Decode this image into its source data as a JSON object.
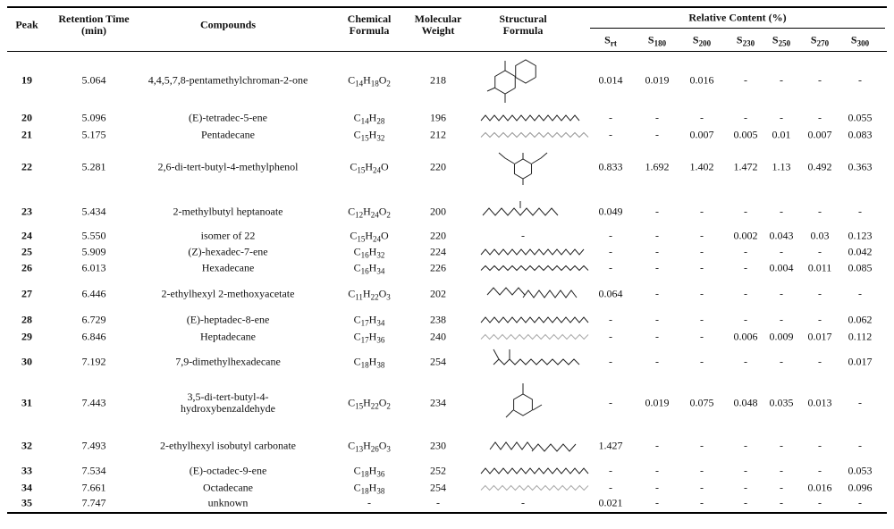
{
  "table": {
    "headers": {
      "peak": "Peak",
      "rt": "Retention Time (min)",
      "compound": "Compounds",
      "formula": "Chemical Formula",
      "mw": "Molecular Weight",
      "structure": "Structural Formula",
      "content": "Relative Content (%)",
      "samples": [
        "Srt",
        "S180",
        "S200",
        "S230",
        "S250",
        "S270",
        "S300"
      ]
    },
    "rows": [
      {
        "peak": "19",
        "rt": "5.064",
        "compound": "4,4,5,7,8-pentamethylchroman-2-one",
        "formula": "C14H18O2",
        "mw": "218",
        "content": [
          "0.014",
          "0.019",
          "0.016",
          "-",
          "-",
          "-",
          "-"
        ]
      },
      {
        "peak": "20",
        "rt": "5.096",
        "compound": "(E)-tetradec-5-ene",
        "formula": "C14H28",
        "mw": "196",
        "content": [
          "-",
          "-",
          "-",
          "-",
          "-",
          "-",
          "0.055"
        ]
      },
      {
        "peak": "21",
        "rt": "5.175",
        "compound": "Pentadecane",
        "formula": "C15H32",
        "mw": "212",
        "content": [
          "-",
          "-",
          "0.007",
          "0.005",
          "0.01",
          "0.007",
          "0.083"
        ]
      },
      {
        "peak": "22",
        "rt": "5.281",
        "compound": "2,6-di-tert-butyl-4-methylphenol",
        "formula": "C15H24O",
        "mw": "220",
        "content": [
          "0.833",
          "1.692",
          "1.402",
          "1.472",
          "1.13",
          "0.492",
          "0.363"
        ]
      },
      {
        "peak": "23",
        "rt": "5.434",
        "compound": "2-methylbutyl heptanoate",
        "formula": "C12H24O2",
        "mw": "200",
        "content": [
          "0.049",
          "-",
          "-",
          "-",
          "-",
          "-",
          "-"
        ]
      },
      {
        "peak": "24",
        "rt": "5.550",
        "compound": "isomer of 22",
        "formula": "C15H24O",
        "mw": "220",
        "structure": "-",
        "content": [
          "-",
          "-",
          "-",
          "0.002",
          "0.043",
          "0.03",
          "0.123"
        ]
      },
      {
        "peak": "25",
        "rt": "5.909",
        "compound": "(Z)-hexadec-7-ene",
        "formula": "C16H32",
        "mw": "224",
        "content": [
          "-",
          "-",
          "-",
          "-",
          "-",
          "-",
          "0.042"
        ]
      },
      {
        "peak": "26",
        "rt": "6.013",
        "compound": "Hexadecane",
        "formula": "C16H34",
        "mw": "226",
        "content": [
          "-",
          "-",
          "-",
          "-",
          "0.004",
          "0.011",
          "0.085"
        ]
      },
      {
        "peak": "27",
        "rt": "6.446",
        "compound": "2-ethylhexyl 2-methoxyacetate",
        "formula": "C11H22O3",
        "mw": "202",
        "content": [
          "0.064",
          "-",
          "-",
          "-",
          "-",
          "-",
          "-"
        ]
      },
      {
        "peak": "28",
        "rt": "6.729",
        "compound": "(E)-heptadec-8-ene",
        "formula": "C17H34",
        "mw": "238",
        "content": [
          "-",
          "-",
          "-",
          "-",
          "-",
          "-",
          "0.062"
        ]
      },
      {
        "peak": "29",
        "rt": "6.846",
        "compound": "Heptadecane",
        "formula": "C17H36",
        "mw": "240",
        "content": [
          "-",
          "-",
          "-",
          "0.006",
          "0.009",
          "0.017",
          "0.112"
        ]
      },
      {
        "peak": "30",
        "rt": "7.192",
        "compound": "7,9-dimethylhexadecane",
        "formula": "C18H38",
        "mw": "254",
        "content": [
          "-",
          "-",
          "-",
          "-",
          "-",
          "-",
          "0.017"
        ]
      },
      {
        "peak": "31",
        "rt": "7.443",
        "compound": "3,5-di-tert-butyl-4-hydroxybenzaldehyde",
        "formula": "C15H22O2",
        "mw": "234",
        "content": [
          "-",
          "0.019",
          "0.075",
          "0.048",
          "0.035",
          "0.013",
          "-"
        ]
      },
      {
        "peak": "32",
        "rt": "7.493",
        "compound": "2-ethylhexyl isobutyl carbonate",
        "formula": "C13H26O3",
        "mw": "230",
        "content": [
          "1.427",
          "-",
          "-",
          "-",
          "-",
          "-",
          "-"
        ]
      },
      {
        "peak": "33",
        "rt": "7.534",
        "compound": "(E)-octadec-9-ene",
        "formula": "C18H36",
        "mw": "252",
        "content": [
          "-",
          "-",
          "-",
          "-",
          "-",
          "-",
          "0.053"
        ]
      },
      {
        "peak": "34",
        "rt": "7.661",
        "compound": "Octadecane",
        "formula": "C18H38",
        "mw": "254",
        "content": [
          "-",
          "-",
          "-",
          "-",
          "-",
          "0.016",
          "0.096"
        ]
      },
      {
        "peak": "35",
        "rt": "7.747",
        "compound": "unknown",
        "formula": "-",
        "mw": "-",
        "structure": "-",
        "content": [
          "0.021",
          "-",
          "-",
          "-",
          "-",
          "-",
          "-"
        ]
      }
    ]
  }
}
